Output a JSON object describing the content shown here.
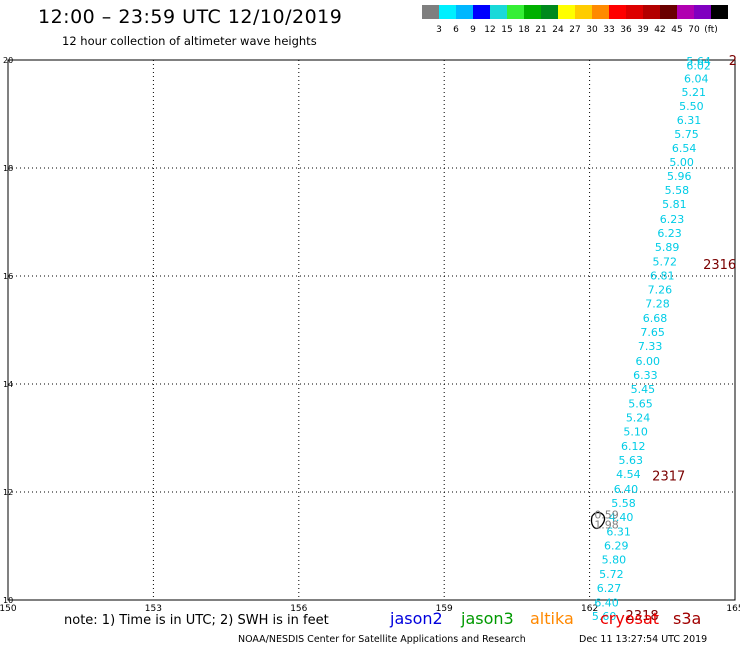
{
  "header": {
    "title": "12:00 – 23:59 UTC 12/10/2019",
    "subtitle": "12 hour collection of altimeter wave heights"
  },
  "legend": {
    "colors": [
      "#7f7f7f",
      "#00f0ff",
      "#00b7ff",
      "#0000ff",
      "#19d9d9",
      "#35ef35",
      "#00b000",
      "#00891d",
      "#ffff00",
      "#ffcc00",
      "#ff8a00",
      "#ff0000",
      "#dd0000",
      "#b30000",
      "#6a0000",
      "#b000b0",
      "#8000c0",
      "#000000"
    ],
    "labels": [
      "3",
      "6",
      "9",
      "12",
      "15",
      "18",
      "21",
      "24",
      "27",
      "30",
      "33",
      "36",
      "39",
      "42",
      "45",
      "70",
      "(ft)"
    ],
    "unit": "(ft)"
  },
  "chart_data": {
    "type": "scatter",
    "title": "12:00 – 23:59 UTC 12/10/2019",
    "subtitle": "12 hour collection of altimeter wave heights",
    "xlim": [
      150,
      165
    ],
    "ylim": [
      10,
      20
    ],
    "x_ticks": [
      "150",
      "153",
      "156",
      "159",
      "162",
      "165"
    ],
    "y_ticks": [
      "10",
      "12",
      "14",
      "16",
      "18",
      "20"
    ],
    "grid": true,
    "series": [
      {
        "name": "jason3",
        "color": "#00cce6",
        "points": [
          {
            "x": 164.25,
            "y": 19.98,
            "v": "5.64"
          },
          {
            "x": 164.25,
            "y": 19.9,
            "v": "6.02"
          },
          {
            "x": 164.2,
            "y": 19.66,
            "v": "6.04"
          },
          {
            "x": 164.15,
            "y": 19.41,
            "v": "5.21"
          },
          {
            "x": 164.1,
            "y": 19.15,
            "v": "5.50"
          },
          {
            "x": 164.05,
            "y": 18.89,
            "v": "6.31"
          },
          {
            "x": 164.0,
            "y": 18.63,
            "v": "5.75"
          },
          {
            "x": 163.95,
            "y": 18.37,
            "v": "6.54"
          },
          {
            "x": 163.9,
            "y": 18.11,
            "v": "5.00"
          },
          {
            "x": 163.85,
            "y": 17.85,
            "v": "5.96"
          },
          {
            "x": 163.8,
            "y": 17.59,
            "v": "5.58"
          },
          {
            "x": 163.75,
            "y": 17.33,
            "v": "5.81"
          },
          {
            "x": 163.7,
            "y": 17.06,
            "v": "6.23"
          },
          {
            "x": 163.65,
            "y": 16.8,
            "v": "6.23"
          },
          {
            "x": 163.6,
            "y": 16.54,
            "v": "5.89"
          },
          {
            "x": 163.55,
            "y": 16.27,
            "v": "5.72"
          },
          {
            "x": 163.5,
            "y": 16.01,
            "v": "6.81"
          },
          {
            "x": 163.45,
            "y": 15.75,
            "v": "7.26"
          },
          {
            "x": 163.4,
            "y": 15.49,
            "v": "7.28"
          },
          {
            "x": 163.35,
            "y": 15.22,
            "v": "6.68"
          },
          {
            "x": 163.3,
            "y": 14.96,
            "v": "7.65"
          },
          {
            "x": 163.25,
            "y": 14.7,
            "v": "7.33"
          },
          {
            "x": 163.2,
            "y": 14.43,
            "v": "6.00"
          },
          {
            "x": 163.15,
            "y": 14.17,
            "v": "6.33"
          },
          {
            "x": 163.1,
            "y": 13.91,
            "v": "5.45"
          },
          {
            "x": 163.05,
            "y": 13.64,
            "v": "5.65"
          },
          {
            "x": 163.0,
            "y": 13.38,
            "v": "5.24"
          },
          {
            "x": 162.95,
            "y": 13.12,
            "v": "5.10"
          },
          {
            "x": 162.9,
            "y": 12.85,
            "v": "6.12"
          },
          {
            "x": 162.85,
            "y": 12.59,
            "v": "5.63"
          },
          {
            "x": 162.8,
            "y": 12.33,
            "v": "4.54"
          },
          {
            "x": 162.75,
            "y": 12.06,
            "v": "6.40"
          },
          {
            "x": 162.7,
            "y": 11.8,
            "v": "5.58"
          },
          {
            "x": 162.65,
            "y": 11.54,
            "v": "4.40"
          },
          {
            "x": 162.6,
            "y": 11.27,
            "v": "6.31"
          },
          {
            "x": 162.55,
            "y": 11.01,
            "v": "6.29"
          },
          {
            "x": 162.5,
            "y": 10.75,
            "v": "5.80"
          },
          {
            "x": 162.45,
            "y": 10.48,
            "v": "5.72"
          },
          {
            "x": 162.4,
            "y": 10.22,
            "v": "6.27"
          },
          {
            "x": 162.35,
            "y": 9.95,
            "v": "6.40"
          },
          {
            "x": 162.3,
            "y": 9.7,
            "v": "5.60"
          }
        ]
      },
      {
        "name": "gray",
        "color": "#7f7f7f",
        "points": [
          {
            "x": 162.35,
            "y": 11.58,
            "v": "0.59"
          },
          {
            "x": 162.35,
            "y": 11.4,
            "v": "1.98"
          }
        ]
      }
    ],
    "pass_labels": [
      {
        "x": 165.0,
        "y": 20.0,
        "text": "2"
      },
      {
        "x": 164.3,
        "y": 16.22,
        "text": "2316"
      },
      {
        "x": 163.25,
        "y": 12.31,
        "text": "2317"
      },
      {
        "x": 162.7,
        "y": 9.72,
        "text": "2318"
      }
    ]
  },
  "note": "note: 1) Time is in UTC; 2) SWH is in feet",
  "satellites": [
    {
      "name": "jason2",
      "color": "#0000dd"
    },
    {
      "name": "jason3",
      "color": "#009900"
    },
    {
      "name": "altika",
      "color": "#ff8800"
    },
    {
      "name": "cryosat",
      "color": "#ee0000"
    },
    {
      "name": "s3a",
      "color": "#a00000"
    }
  ],
  "footer": {
    "center": "NOAA/NESDIS Center for Satellite Applications and Research",
    "right": "Dec 11 13:27:54 UTC 2019"
  }
}
